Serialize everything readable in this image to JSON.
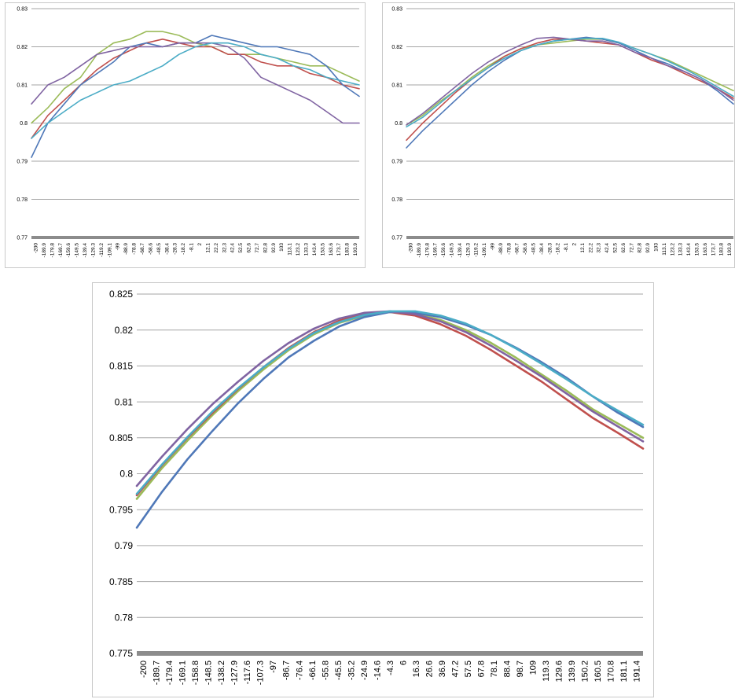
{
  "colors": {
    "blue": "#4f78b8",
    "red": "#c0504d",
    "green": "#9bbb59",
    "purple": "#8064a2",
    "cyan": "#4bacc6",
    "gridline": "#a6a6a6",
    "x_axis_bar": "#8c8c8c"
  },
  "chart_data": [
    {
      "type": "line",
      "title": "",
      "xlabel": "",
      "ylabel": "",
      "ylim": [
        0.77,
        0.83
      ],
      "y_ticks": [
        "0.77",
        "0.78",
        "0.79",
        "0.8",
        "0.81",
        "0.82",
        "0.83"
      ],
      "x_tick_labels": [
        "-200",
        "-189.9",
        "-179.8",
        "-169.7",
        "-159.6",
        "-149.5",
        "-139.4",
        "-129.3",
        "-119.2",
        "-109.1",
        "-99",
        "-88.9",
        "-78.8",
        "-68.7",
        "-58.6",
        "-48.5",
        "-38.4",
        "-28.3",
        "-18.2",
        "-8.1",
        "2",
        "12.1",
        "22.2",
        "32.3",
        "42.4",
        "52.5",
        "62.6",
        "72.7",
        "82.8",
        "92.9",
        "103",
        "113.1",
        "123.2",
        "133.3",
        "143.4",
        "153.5",
        "163.6",
        "173.7",
        "183.8",
        "193.9"
      ],
      "gridlines": true,
      "legend": "none",
      "x": [
        -200,
        -180,
        -160,
        -140,
        -120,
        -100,
        -80,
        -60,
        -40,
        -20,
        0,
        20,
        40,
        60,
        80,
        100,
        120,
        140,
        160,
        180,
        200
      ],
      "series": [
        {
          "color": "blue",
          "values": [
            0.791,
            0.8,
            0.805,
            0.81,
            0.813,
            0.816,
            0.82,
            0.821,
            0.82,
            0.821,
            0.821,
            0.823,
            0.822,
            0.821,
            0.82,
            0.82,
            0.819,
            0.818,
            0.815,
            0.81,
            0.807
          ]
        },
        {
          "color": "red",
          "values": [
            0.796,
            0.802,
            0.806,
            0.81,
            0.814,
            0.817,
            0.819,
            0.821,
            0.822,
            0.821,
            0.82,
            0.82,
            0.818,
            0.818,
            0.816,
            0.815,
            0.815,
            0.813,
            0.812,
            0.81,
            0.809
          ]
        },
        {
          "color": "green",
          "values": [
            0.8,
            0.804,
            0.809,
            0.812,
            0.818,
            0.821,
            0.822,
            0.824,
            0.824,
            0.823,
            0.821,
            0.82,
            0.818,
            0.818,
            0.818,
            0.817,
            0.816,
            0.815,
            0.815,
            0.813,
            0.811
          ]
        },
        {
          "color": "purple",
          "values": [
            0.805,
            0.81,
            0.812,
            0.815,
            0.818,
            0.819,
            0.82,
            0.82,
            0.82,
            0.821,
            0.821,
            0.821,
            0.82,
            0.817,
            0.812,
            0.81,
            0.808,
            0.806,
            0.803,
            0.8,
            0.8
          ]
        },
        {
          "color": "cyan",
          "values": [
            0.796,
            0.8,
            0.803,
            0.806,
            0.808,
            0.81,
            0.811,
            0.813,
            0.815,
            0.818,
            0.82,
            0.821,
            0.821,
            0.82,
            0.818,
            0.817,
            0.815,
            0.814,
            0.812,
            0.811,
            0.81
          ]
        }
      ]
    },
    {
      "type": "line",
      "title": "",
      "xlabel": "",
      "ylabel": "",
      "ylim": [
        0.77,
        0.83
      ],
      "y_ticks": [
        "0.77",
        "0.78",
        "0.79",
        "0.8",
        "0.81",
        "0.82",
        "0.83"
      ],
      "x_tick_labels": [
        "-200",
        "-189.9",
        "-179.8",
        "-169.7",
        "-159.6",
        "-149.5",
        "-139.4",
        "-129.3",
        "-119.2",
        "-109.1",
        "-99",
        "-88.9",
        "-78.8",
        "-68.7",
        "-58.6",
        "-48.5",
        "-38.4",
        "-28.3",
        "-18.2",
        "-8.1",
        "2",
        "12.1",
        "22.2",
        "32.3",
        "42.4",
        "52.5",
        "62.6",
        "72.7",
        "82.8",
        "92.9",
        "103",
        "113.1",
        "123.2",
        "133.3",
        "143.4",
        "153.5",
        "163.6",
        "173.7",
        "183.8",
        "193.9"
      ],
      "gridlines": true,
      "legend": "none",
      "x": [
        -200,
        -180,
        -160,
        -140,
        -120,
        -100,
        -80,
        -60,
        -40,
        -20,
        0,
        20,
        40,
        60,
        80,
        100,
        120,
        140,
        160,
        180,
        200
      ],
      "series": [
        {
          "color": "blue",
          "values": [
            0.7935,
            0.798,
            0.802,
            0.806,
            0.81,
            0.8135,
            0.8165,
            0.819,
            0.8205,
            0.8215,
            0.822,
            0.8225,
            0.822,
            0.821,
            0.819,
            0.817,
            0.8155,
            0.8135,
            0.8115,
            0.8085,
            0.805
          ]
        },
        {
          "color": "red",
          "values": [
            0.7955,
            0.8,
            0.804,
            0.808,
            0.8115,
            0.8145,
            0.8175,
            0.8195,
            0.821,
            0.822,
            0.822,
            0.8215,
            0.821,
            0.8205,
            0.8185,
            0.8165,
            0.815,
            0.813,
            0.811,
            0.809,
            0.8065
          ]
        },
        {
          "color": "green",
          "values": [
            0.7995,
            0.802,
            0.8055,
            0.8085,
            0.812,
            0.815,
            0.8175,
            0.8195,
            0.8205,
            0.821,
            0.8215,
            0.822,
            0.822,
            0.821,
            0.8195,
            0.818,
            0.8165,
            0.8145,
            0.8125,
            0.8105,
            0.8085
          ]
        },
        {
          "color": "purple",
          "values": [
            0.7995,
            0.8025,
            0.806,
            0.8095,
            0.813,
            0.816,
            0.8185,
            0.8205,
            0.8222,
            0.8225,
            0.822,
            0.8215,
            0.8215,
            0.8205,
            0.8185,
            0.817,
            0.815,
            0.8135,
            0.8115,
            0.809,
            0.806
          ]
        },
        {
          "color": "cyan",
          "values": [
            0.799,
            0.8015,
            0.805,
            0.8085,
            0.8115,
            0.8145,
            0.817,
            0.819,
            0.8205,
            0.8215,
            0.822,
            0.8222,
            0.8222,
            0.8212,
            0.8195,
            0.818,
            0.8162,
            0.8142,
            0.812,
            0.8095,
            0.807
          ]
        }
      ]
    },
    {
      "type": "line",
      "title": "",
      "xlabel": "",
      "ylabel": "",
      "ylim": [
        0.775,
        0.825
      ],
      "y_ticks": [
        "0.775",
        "0.78",
        "0.785",
        "0.79",
        "0.795",
        "0.8",
        "0.805",
        "0.81",
        "0.815",
        "0.82",
        "0.825"
      ],
      "x_tick_labels": [
        "-200",
        "-189.7",
        "-179.4",
        "-169.1",
        "-158.8",
        "-148.5",
        "-138.2",
        "-127.9",
        "-117.6",
        "-107.3",
        "-97",
        "-86.7",
        "-76.4",
        "-66.1",
        "-55.8",
        "-45.5",
        "-35.2",
        "-24.9",
        "-14.6",
        "-4.3",
        "6",
        "16.3",
        "26.6",
        "36.9",
        "47.2",
        "57.5",
        "67.8",
        "78.1",
        "88.4",
        "98.7",
        "109",
        "119.3",
        "129.6",
        "139.9",
        "150.2",
        "160.5",
        "170.8",
        "181.1",
        "191.4"
      ],
      "gridlines": true,
      "legend": "none",
      "x": [
        -200,
        -180,
        -160,
        -140,
        -120,
        -100,
        -80,
        -60,
        -40,
        -20,
        0,
        20,
        40,
        60,
        80,
        100,
        120,
        140,
        160,
        180,
        200
      ],
      "series": [
        {
          "color": "blue",
          "values": [
            0.7925,
            0.7975,
            0.802,
            0.806,
            0.8098,
            0.8132,
            0.8162,
            0.8185,
            0.8205,
            0.8218,
            0.8225,
            0.8224,
            0.8218,
            0.8207,
            0.8193,
            0.8175,
            0.8155,
            0.8133,
            0.8108,
            0.8085,
            0.8065
          ]
        },
        {
          "color": "red",
          "values": [
            0.797,
            0.8012,
            0.805,
            0.8085,
            0.8118,
            0.8148,
            0.8175,
            0.8197,
            0.8213,
            0.8222,
            0.8225,
            0.822,
            0.8208,
            0.8192,
            0.8172,
            0.815,
            0.8128,
            0.8103,
            0.8078,
            0.8057,
            0.8035
          ]
        },
        {
          "color": "green",
          "values": [
            0.7965,
            0.8008,
            0.8046,
            0.8082,
            0.8115,
            0.8145,
            0.8172,
            0.8194,
            0.821,
            0.822,
            0.8225,
            0.8223,
            0.8214,
            0.82,
            0.8182,
            0.8161,
            0.8138,
            0.8115,
            0.809,
            0.807,
            0.805
          ]
        },
        {
          "color": "purple",
          "values": [
            0.7983,
            0.8024,
            0.8062,
            0.8097,
            0.8128,
            0.8157,
            0.8182,
            0.8202,
            0.8216,
            0.8224,
            0.8226,
            0.8222,
            0.8212,
            0.8197,
            0.8178,
            0.8157,
            0.8135,
            0.8111,
            0.8087,
            0.8066,
            0.8045
          ]
        },
        {
          "color": "cyan",
          "values": [
            0.7972,
            0.8013,
            0.8051,
            0.8087,
            0.8119,
            0.8148,
            0.8174,
            0.8196,
            0.8211,
            0.8221,
            0.8226,
            0.8226,
            0.822,
            0.8209,
            0.8193,
            0.8174,
            0.8153,
            0.8131,
            0.8108,
            0.8088,
            0.8068
          ]
        }
      ]
    }
  ]
}
